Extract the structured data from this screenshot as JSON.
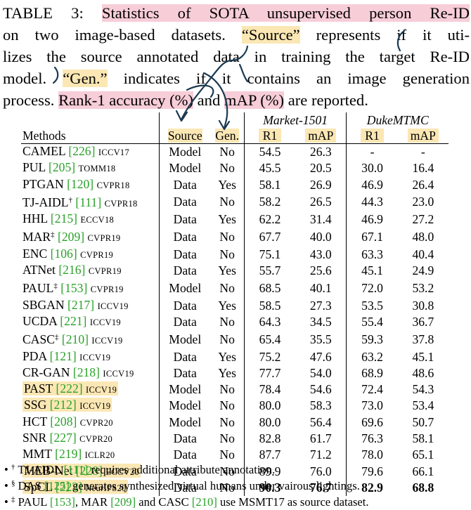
{
  "caption": {
    "label": "TABLE 3:",
    "lines": [
      [
        "Statistics of SOTA unsupervised person Re-ID"
      ],
      [
        "on two image-based datasets. “Source” represents if it uti-"
      ],
      [
        "lizes the source annotated data in training the target Re-ID"
      ],
      [
        "model. “Gen.” indicates if it contains an image generation"
      ],
      [
        "process. Rank-1 accuracy (%) and mAP (%) are reported."
      ]
    ],
    "line2_a": "on two image-based datasets. ",
    "line2_hl": "“Source”",
    "line2_b": " represents if it uti-",
    "line3": "lizes the source annotated data in training the target Re-ID",
    "line4_a": "model. ",
    "line4_hl": "“Gen.”",
    "line4_b": " indicates if it contains an image generation",
    "line5_a": "process. ",
    "line5_hl1": "Rank-1 accuracy (%)",
    "line5_b": " and ",
    "line5_hl2": "mAP (%)",
    "line5_c": " are reported.",
    "line1_text": "Statistics of SOTA unsupervised person Re-ID"
  },
  "table": {
    "dataset1": "Market-1501",
    "dataset2": "DukeMTMC",
    "headers": {
      "methods": "Methods",
      "source": "Source",
      "gen": "Gen.",
      "r1": "R1",
      "map": "mAP"
    },
    "rows": [
      {
        "name": "CAMEL",
        "ref": "[226]",
        "sup": "",
        "venue": "ICCV17",
        "source": "Model",
        "gen": "No",
        "m_r1": "54.5",
        "m_map": "26.3",
        "d_r1": "-",
        "d_map": "-",
        "hl": false
      },
      {
        "name": "PUL",
        "ref": "[205]",
        "sup": "",
        "venue": "TOMM18",
        "source": "Model",
        "gen": "No",
        "m_r1": "45.5",
        "m_map": "20.5",
        "d_r1": "30.0",
        "d_map": "16.4",
        "hl": false
      },
      {
        "name": "PTGAN",
        "ref": "[120]",
        "sup": "",
        "venue": "CVPR18",
        "source": "Data",
        "gen": "Yes",
        "m_r1": "58.1",
        "m_map": "26.9",
        "d_r1": "46.9",
        "d_map": "26.4",
        "hl": false
      },
      {
        "name": "TJ-AIDL",
        "ref": "[111]",
        "sup": "†",
        "venue": "CVPR18",
        "source": "Data",
        "gen": "No",
        "m_r1": "58.2",
        "m_map": "26.5",
        "d_r1": "44.3",
        "d_map": "23.0",
        "hl": false
      },
      {
        "name": "HHL",
        "ref": "[215]",
        "sup": "",
        "venue": "ECCV18",
        "source": "Data",
        "gen": "Yes",
        "m_r1": "62.2",
        "m_map": "31.4",
        "d_r1": "46.9",
        "d_map": "27.2",
        "hl": false
      },
      {
        "name": "MAR",
        "ref": "[209]",
        "sup": "‡",
        "venue": "CVPR19",
        "source": "Data",
        "gen": "No",
        "m_r1": "67.7",
        "m_map": "40.0",
        "d_r1": "67.1",
        "d_map": "48.0",
        "hl": false
      },
      {
        "name": "ENC",
        "ref": "[106]",
        "sup": "",
        "venue": "CVPR19",
        "source": "Data",
        "gen": "No",
        "m_r1": "75.1",
        "m_map": "43.0",
        "d_r1": "63.3",
        "d_map": "40.4",
        "hl": false
      },
      {
        "name": "ATNet",
        "ref": "[216]",
        "sup": "",
        "venue": "CVPR19",
        "source": "Data",
        "gen": "Yes",
        "m_r1": "55.7",
        "m_map": "25.6",
        "d_r1": "45.1",
        "d_map": "24.9",
        "hl": false
      },
      {
        "name": "PAUL",
        "ref": "[153]",
        "sup": "‡",
        "venue": "CVPR19",
        "source": "Model",
        "gen": "No",
        "m_r1": "68.5",
        "m_map": "40.1",
        "d_r1": "72.0",
        "d_map": "53.2",
        "hl": false
      },
      {
        "name": "SBGAN",
        "ref": "[217]",
        "sup": "",
        "venue": "ICCV19",
        "source": "Data",
        "gen": "Yes",
        "m_r1": "58.5",
        "m_map": "27.3",
        "d_r1": "53.5",
        "d_map": "30.8",
        "hl": false
      },
      {
        "name": "UCDA",
        "ref": "[221]",
        "sup": "",
        "venue": "ICCV19",
        "source": "Data",
        "gen": "No",
        "m_r1": "64.3",
        "m_map": "34.5",
        "d_r1": "55.4",
        "d_map": "36.7",
        "hl": false
      },
      {
        "name": "CASC",
        "ref": "[210]",
        "sup": "‡",
        "venue": "ICCV19",
        "source": "Model",
        "gen": "No",
        "m_r1": "65.4",
        "m_map": "35.5",
        "d_r1": "59.3",
        "d_map": "37.8",
        "hl": false
      },
      {
        "name": "PDA",
        "ref": "[121]",
        "sup": "",
        "venue": "ICCV19",
        "source": "Data",
        "gen": "Yes",
        "m_r1": "75.2",
        "m_map": "47.6",
        "d_r1": "63.2",
        "d_map": "45.1",
        "hl": false
      },
      {
        "name": "CR-GAN",
        "ref": "[218]",
        "sup": "",
        "venue": "ICCV19",
        "source": "Data",
        "gen": "Yes",
        "m_r1": "77.7",
        "m_map": "54.0",
        "d_r1": "68.9",
        "d_map": "48.6",
        "hl": false
      },
      {
        "name": "PAST",
        "ref": "[222]",
        "sup": "",
        "venue": "ICCV19",
        "source": "Model",
        "gen": "No",
        "m_r1": "78.4",
        "m_map": "54.6",
        "d_r1": "72.4",
        "d_map": "54.3",
        "hl": true
      },
      {
        "name": "SSG",
        "ref": "[212]",
        "sup": "",
        "venue": "ICCV19",
        "source": "Model",
        "gen": "No",
        "m_r1": "80.0",
        "m_map": "58.3",
        "d_r1": "73.0",
        "d_map": "53.4",
        "hl": true
      },
      {
        "name": "HCT",
        "ref": "[208]",
        "sup": "",
        "venue": "CVPR20",
        "source": "Model",
        "gen": "No",
        "m_r1": "80.0",
        "m_map": "56.4",
        "d_r1": "69.6",
        "d_map": "50.7",
        "hl": false
      },
      {
        "name": "SNR",
        "ref": "[227]",
        "sup": "",
        "venue": "CVPR20",
        "source": "Data",
        "gen": "No",
        "m_r1": "82.8",
        "m_map": "61.7",
        "d_r1": "76.3",
        "d_map": "58.1",
        "hl": false
      },
      {
        "name": "MMT",
        "ref": "[219]",
        "sup": "",
        "venue": "ICLR20",
        "source": "Data",
        "gen": "No",
        "m_r1": "87.7",
        "m_map": "71.2",
        "d_r1": "78.0",
        "d_map": "65.1",
        "hl": false
      },
      {
        "name": "MEB-Net",
        "ref": "[228]",
        "sup": "",
        "venue": "ECCV20",
        "source": "Data",
        "gen": "No",
        "m_r1": "89.9",
        "m_map": "76.0",
        "d_r1": "79.6",
        "d_map": "66.1",
        "hl": true
      },
      {
        "name": "SpCL",
        "ref": "[223]",
        "sup": "",
        "venue": "NeurIPS20",
        "source": "Data",
        "gen": "No",
        "m_r1": "90.3",
        "m_map": "76.7",
        "d_r1": "82.9",
        "d_map": "68.8",
        "hl": true,
        "bold": true
      }
    ]
  },
  "notes": [
    {
      "mark": "†",
      "ref_name": "TJ-AIDL",
      "ref": "[111]",
      "text": " requires additional attribute annotation."
    },
    {
      "mark": "§",
      "ref_name": "DAS",
      "ref": "[125]",
      "text": " generates synthesized virtual humans under vairous lightings."
    },
    {
      "mark": "‡",
      "text_a": "PAUL ",
      "ref_a": "[153]",
      "text_b": ", MAR ",
      "ref_b": "[209]",
      "text_c": " and CASC ",
      "ref_c": "[210]",
      "text_d": " use MSMT17 as source dataset."
    }
  ],
  "colors": {
    "highlight": "#fbe7b4",
    "pink": "#f7cdd8",
    "ref": "#2aa12a",
    "ink": "#1a3a52"
  }
}
